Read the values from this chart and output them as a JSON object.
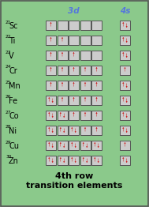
{
  "bg_color": "#8bc98b",
  "border_color": "#555555",
  "box_bg": "#cccccc",
  "arrow_color": "#cc0000",
  "label_color": "#000000",
  "header_color": "#5577dd",
  "title_color": "#000000",
  "elements": [
    {
      "symbol": "Sc",
      "atomic": "21",
      "3d": [
        1,
        0,
        0,
        0,
        0
      ],
      "4s": 2
    },
    {
      "symbol": "Ti",
      "atomic": "22",
      "3d": [
        1,
        1,
        0,
        0,
        0
      ],
      "4s": 2
    },
    {
      "symbol": "V",
      "atomic": "23",
      "3d": [
        1,
        1,
        1,
        0,
        0
      ],
      "4s": 2
    },
    {
      "symbol": "Cr",
      "atomic": "24",
      "3d": [
        1,
        1,
        1,
        1,
        1
      ],
      "4s": 1
    },
    {
      "symbol": "Mn",
      "atomic": "25",
      "3d": [
        1,
        1,
        1,
        1,
        1
      ],
      "4s": 2
    },
    {
      "symbol": "Fe",
      "atomic": "26",
      "3d": [
        2,
        1,
        1,
        1,
        1
      ],
      "4s": 2
    },
    {
      "symbol": "Co",
      "atomic": "27",
      "3d": [
        2,
        2,
        1,
        1,
        1
      ],
      "4s": 2
    },
    {
      "symbol": "Ni",
      "atomic": "28",
      "3d": [
        2,
        2,
        2,
        1,
        1
      ],
      "4s": 2
    },
    {
      "symbol": "Cu",
      "atomic": "29",
      "3d": [
        2,
        2,
        2,
        2,
        2
      ],
      "4s": 1
    },
    {
      "symbol": "Zn",
      "atomic": "30",
      "3d": [
        2,
        2,
        2,
        2,
        2
      ],
      "4s": 2
    }
  ],
  "title_line1": "4th row",
  "title_line2": "transition elements",
  "figw": 1.89,
  "figh": 2.62,
  "dpi": 100
}
